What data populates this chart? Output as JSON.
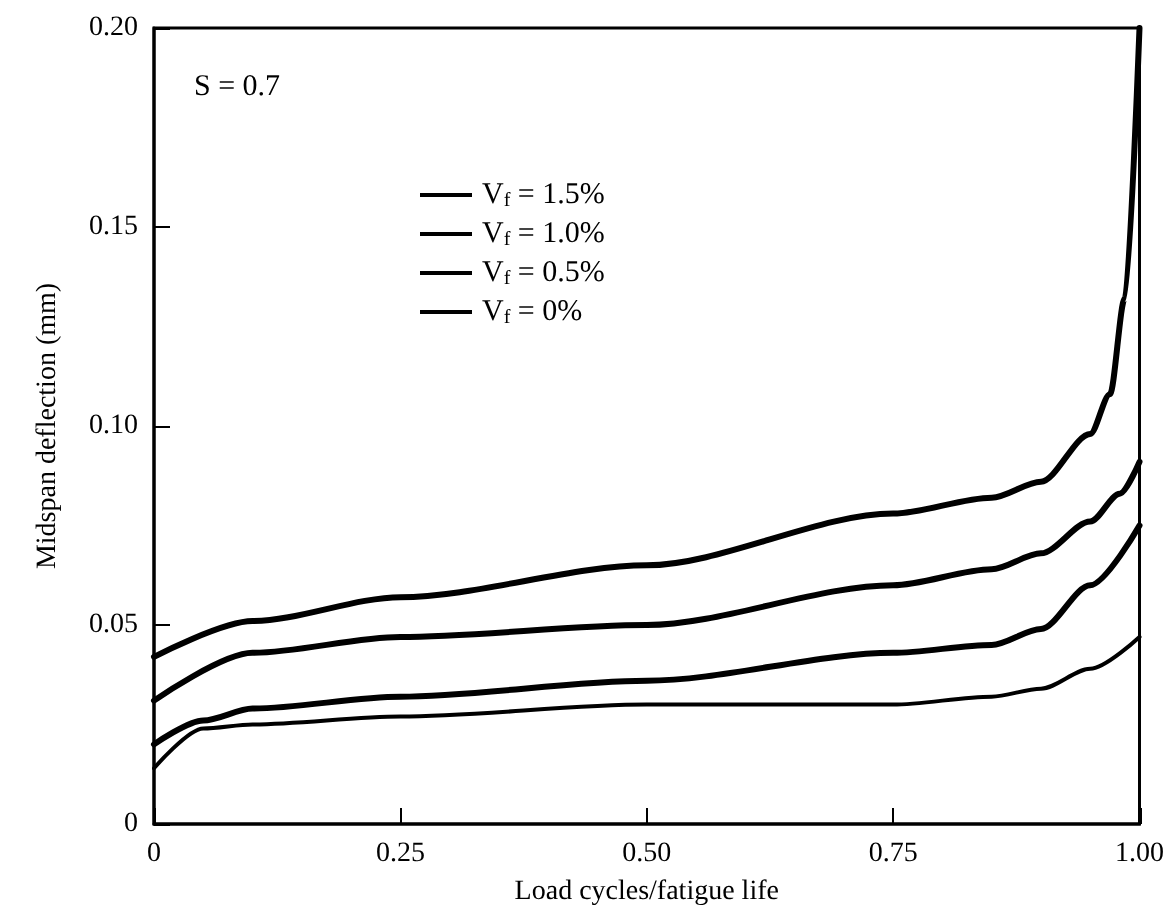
{
  "chart_data": {
    "type": "line",
    "xlabel": "Load cycles/fatigue life",
    "ylabel": "Midspan deflection (mm)",
    "annotations": [
      "S = 0.7"
    ],
    "xlim": [
      0,
      1
    ],
    "xticks": [
      0,
      {
        "value": 0.25,
        "label": "0.25"
      },
      {
        "value": 0.5,
        "label": "0.50"
      },
      {
        "value": 0.75,
        "label": "0.75"
      },
      {
        "value": 1,
        "label": "1.00"
      }
    ],
    "ylim": [
      0,
      0.2
    ],
    "yticks": [
      0,
      {
        "value": 0.05,
        "label": "0.05"
      },
      {
        "value": 0.1,
        "label": "0.10"
      },
      {
        "value": 0.15,
        "label": "0.15"
      },
      {
        "value": 0.2,
        "label": "0.20"
      }
    ],
    "grid": false,
    "legend": "top left",
    "marker": "none",
    "line_style": "solid",
    "series": [
      {
        "name": "V$_{f}$ = 1.5%",
        "color": "#000000",
        "x": [
          0,
          0.1,
          0.25,
          0.5,
          0.75,
          0.85,
          0.9,
          0.95,
          0.97,
          0.985,
          1
        ],
        "values": [
          0.042,
          0.051,
          0.057,
          0.065,
          0.078,
          0.082,
          0.086,
          0.098,
          0.108,
          0.132,
          0.2
        ]
      },
      {
        "name": "V$_{f}$ = 1.0%",
        "color": "#000000",
        "x": [
          0,
          0.1,
          0.25,
          0.5,
          0.75,
          0.85,
          0.9,
          0.95,
          0.98,
          1
        ],
        "values": [
          0.031,
          0.043,
          0.047,
          0.05,
          0.06,
          0.064,
          0.068,
          0.076,
          0.083,
          0.091
        ]
      },
      {
        "name": "V$_{f}$ = 0.5%",
        "color": "#000000",
        "x": [
          0,
          0.05,
          0.1,
          0.25,
          0.5,
          0.75,
          0.85,
          0.9,
          0.95,
          1
        ],
        "values": [
          0.02,
          0.026,
          0.029,
          0.032,
          0.036,
          0.043,
          0.045,
          0.049,
          0.06,
          0.075
        ]
      },
      {
        "name": "V$_{f}$ = 0%",
        "color": "#000000",
        "x": [
          0,
          0.05,
          0.1,
          0.25,
          0.5,
          0.75,
          0.85,
          0.9,
          0.95,
          1
        ],
        "values": [
          0.014,
          0.024,
          0.025,
          0.027,
          0.03,
          0.03,
          0.032,
          0.034,
          0.039,
          0.047
        ]
      }
    ]
  }
}
